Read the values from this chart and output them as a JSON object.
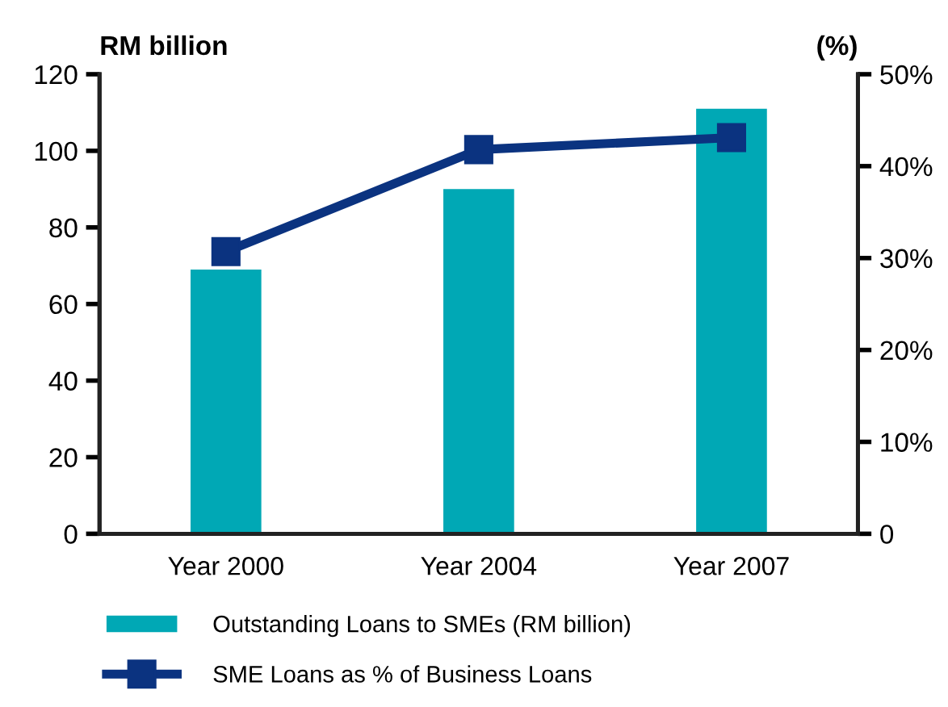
{
  "chart_data": {
    "type": "bar",
    "categories": [
      "Year 2000",
      "Year 2004",
      "Year 2007"
    ],
    "ylabel": "RM billion",
    "y2label": "(%)",
    "series": [
      {
        "name": "Outstanding Loans to SMEs (RM billion)",
        "color": "#00a8b5",
        "values": [
          69,
          90,
          111
        ]
      },
      {
        "name": "SME Loans as % of Business Loans",
        "type": "line",
        "axis": "y2",
        "color": "#0b3380",
        "values": [
          30.7,
          41.8,
          43.1
        ],
        "marker": "square"
      }
    ],
    "ylim": [
      0,
      120
    ],
    "yticks": [
      0,
      20,
      40,
      60,
      80,
      100,
      120
    ],
    "y2lim": [
      0,
      50
    ],
    "y2ticks": [
      0,
      {
        "value": 10,
        "label": "10%"
      },
      {
        "value": 20,
        "label": "20%"
      },
      {
        "value": 30,
        "label": "30%"
      },
      {
        "value": 40,
        "label": "40%"
      },
      {
        "value": 50,
        "label": "50%"
      }
    ],
    "grid": false,
    "legend": "bottom"
  }
}
